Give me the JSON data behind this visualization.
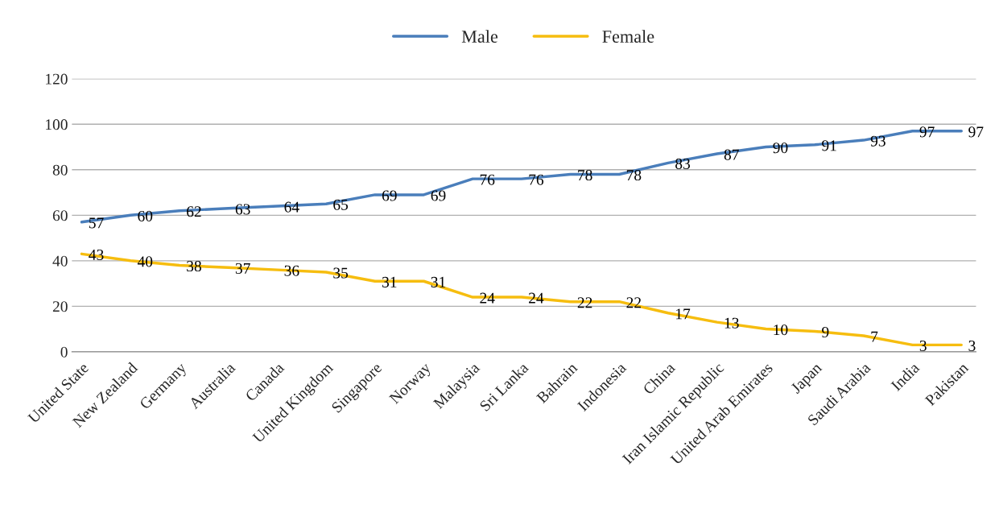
{
  "chart_data": {
    "type": "line",
    "categories": [
      "United State",
      "New Zealand",
      "Germany",
      "Australia",
      "Canada",
      "United Kingdom",
      "Singapore",
      "Norway",
      "Malaysia",
      "Sri Lanka",
      "Bahrain",
      "Indonesia",
      "China",
      "Iran Islamic Republic",
      "United Arab Emirates",
      "Japan",
      "Saudi Arabia",
      "India",
      "Pakistan"
    ],
    "series": [
      {
        "name": "Male",
        "color": "#4a7ebb",
        "values": [
          57,
          60,
          62,
          63,
          64,
          65,
          69,
          69,
          76,
          76,
          78,
          78,
          83,
          87,
          90,
          91,
          93,
          97,
          97
        ]
      },
      {
        "name": "Female",
        "color": "#f6bd0f",
        "values": [
          43,
          40,
          38,
          37,
          36,
          35,
          31,
          31,
          24,
          24,
          22,
          22,
          17,
          13,
          10,
          9,
          7,
          3,
          3
        ]
      }
    ],
    "ylim": [
      0,
      120
    ],
    "yticks": [
      0,
      20,
      40,
      60,
      80,
      100,
      120
    ],
    "grid": "y",
    "legend": "top",
    "data_labels": true,
    "marker": "none",
    "line_style": "solid"
  }
}
